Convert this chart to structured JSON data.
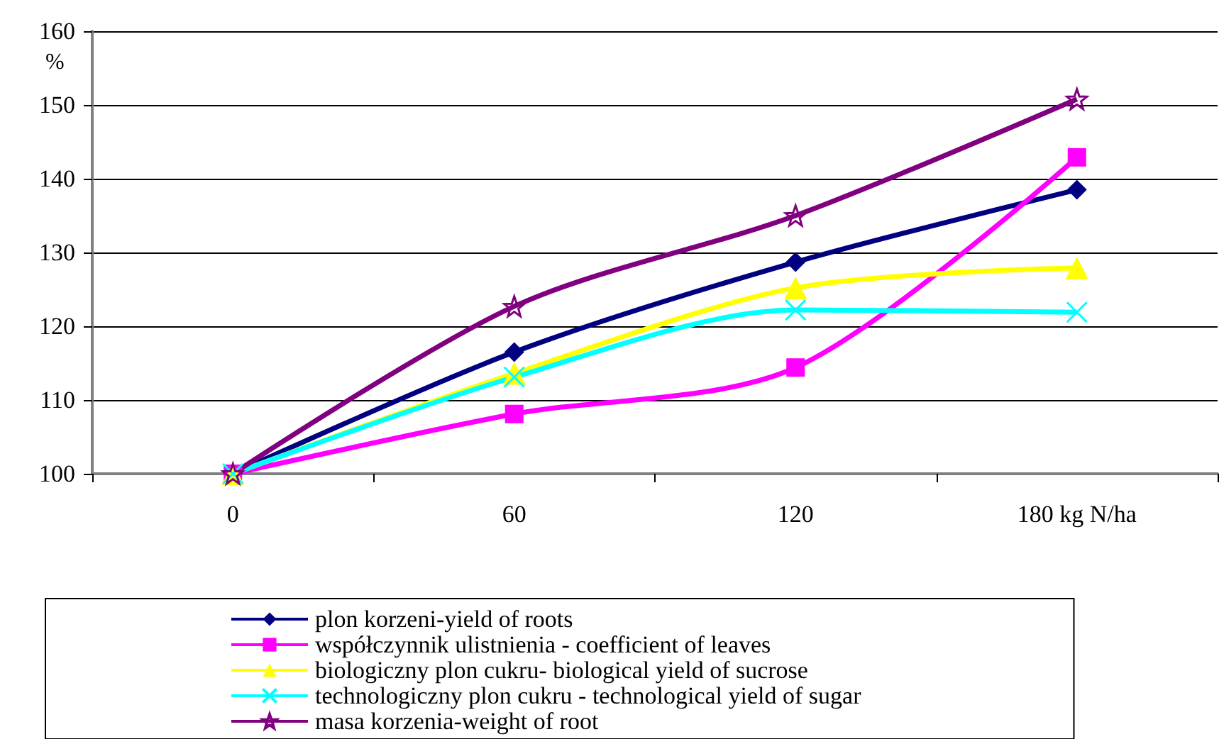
{
  "chart_data": {
    "type": "line",
    "ylabel": "%",
    "categories": [
      "0",
      "60",
      "120",
      "180 kg N/ha"
    ],
    "ylim": [
      100,
      160
    ],
    "yticks": [
      100,
      110,
      120,
      130,
      140,
      150,
      160
    ],
    "grid": "y",
    "legend": "bottom",
    "series": [
      {
        "name": "plon korzeni-yield of roots",
        "color": "#000080",
        "marker": "diamond",
        "values": [
          100,
          116.5,
          128.7,
          138.5
        ]
      },
      {
        "name": "współczynnik ulistnienia - coefficient of leaves",
        "color": "#ff00ff",
        "marker": "square",
        "values": [
          100,
          108.1,
          114.4,
          142.9
        ]
      },
      {
        "name": "biologiczny plon cukru- biological yield of sucrose",
        "color": "#ffff00",
        "marker": "triangle",
        "values": [
          100,
          113.6,
          125.2,
          127.9
        ]
      },
      {
        "name": "technologiczny plon cukru - technological yield of sugar",
        "color": "#00ffff",
        "marker": "cross",
        "values": [
          100,
          113.1,
          122.2,
          121.9
        ]
      },
      {
        "name": "masa korzenia-weight of root",
        "color": "#800080",
        "marker": "star",
        "values": [
          100,
          122.7,
          135,
          150.8
        ]
      }
    ]
  }
}
